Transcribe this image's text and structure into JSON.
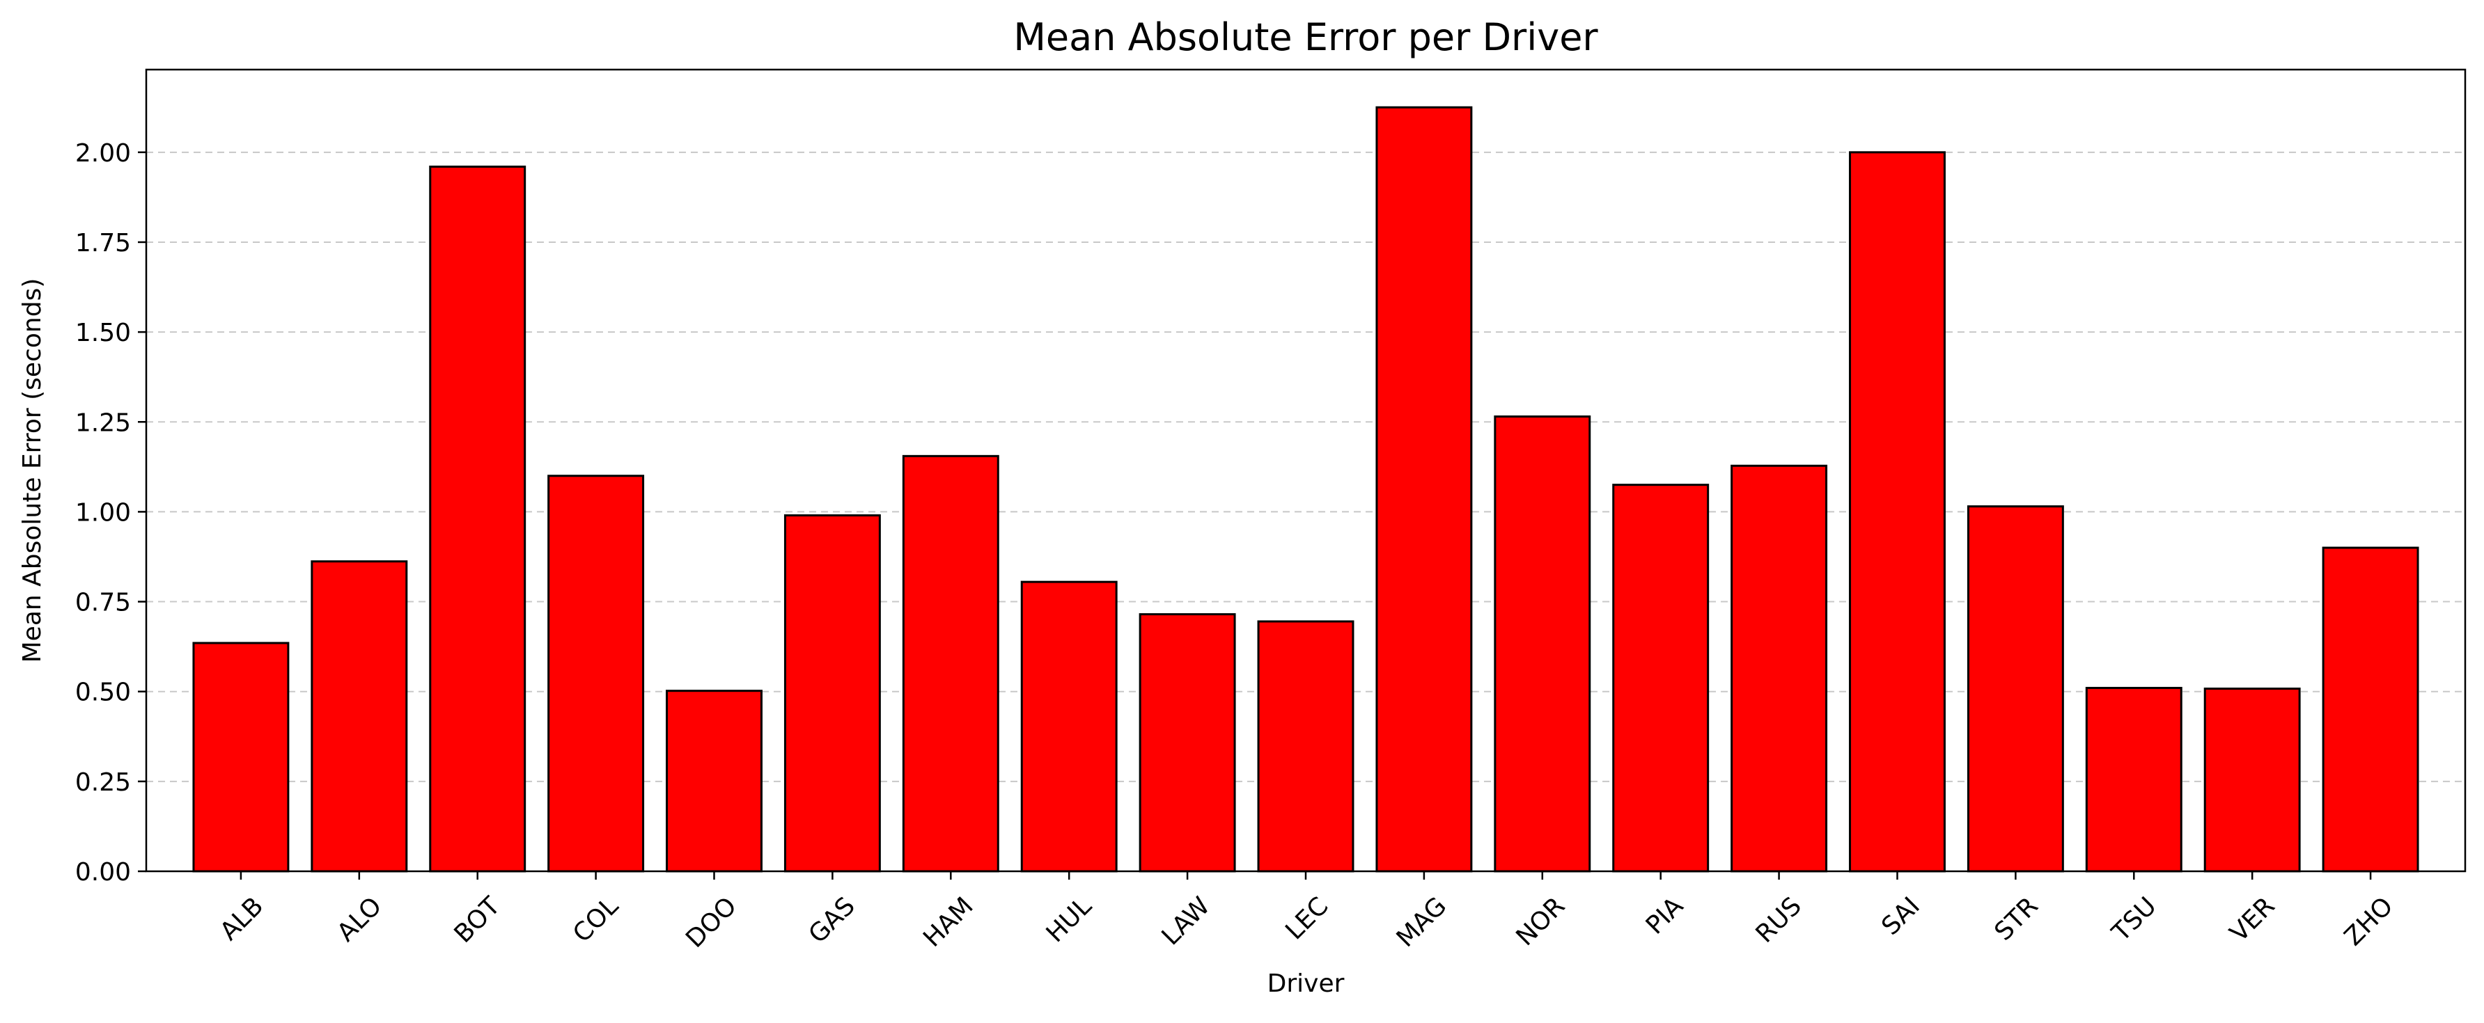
{
  "chart_data": {
    "type": "bar",
    "title": "Mean Absolute Error per Driver",
    "xlabel": "Driver",
    "ylabel": "Mean Absolute Error (seconds)",
    "categories": [
      "ALB",
      "ALO",
      "BOT",
      "COL",
      "DOO",
      "GAS",
      "HAM",
      "HUL",
      "LAW",
      "LEC",
      "MAG",
      "NOR",
      "PIA",
      "RUS",
      "SAI",
      "STR",
      "TSU",
      "VER",
      "ZHO"
    ],
    "values": [
      0.635,
      0.862,
      1.96,
      1.1,
      0.502,
      0.99,
      1.155,
      0.805,
      0.715,
      0.695,
      2.125,
      1.265,
      1.075,
      1.128,
      2.0,
      1.015,
      0.51,
      0.508,
      0.9
    ],
    "ylim": [
      0,
      2.23
    ],
    "yticks": [
      "0.00",
      "0.25",
      "0.50",
      "0.75",
      "1.00",
      "1.25",
      "1.50",
      "1.75",
      "2.00"
    ],
    "grid": "y, dashed",
    "bar_color": "#ff0000",
    "edge_color": "#000000"
  }
}
